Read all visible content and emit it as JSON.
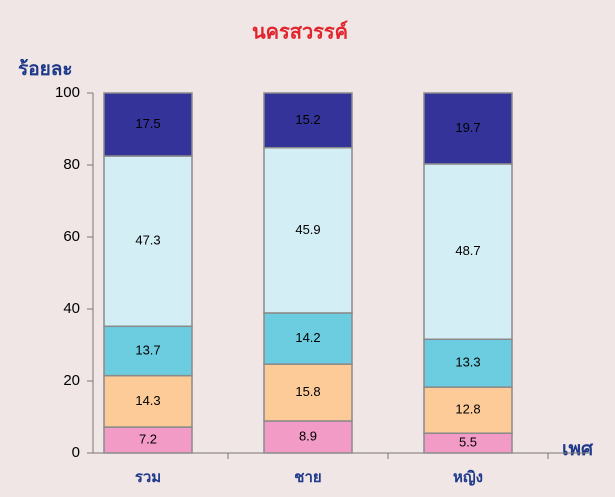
{
  "chart_data": {
    "type": "stacked_bar",
    "title": "นครสวรรค์",
    "y_label": "ร้อยละ",
    "x_label": "เพศ",
    "categories": [
      "รวม",
      "ชาย",
      "หญิง"
    ],
    "series": [
      {
        "color": "#f29bc6",
        "values": [
          7.2,
          8.9,
          5.5
        ]
      },
      {
        "color": "#fdcb98",
        "values": [
          14.3,
          15.8,
          12.8
        ]
      },
      {
        "color": "#6ccde0",
        "values": [
          13.7,
          14.2,
          13.3
        ]
      },
      {
        "color": "#d4eef6",
        "values": [
          47.3,
          45.9,
          48.7
        ]
      },
      {
        "color": "#333399",
        "values": [
          17.5,
          15.2,
          19.7
        ]
      }
    ],
    "ylim": [
      0,
      100
    ],
    "yticks": [
      0,
      20,
      40,
      60,
      80,
      100
    ]
  }
}
